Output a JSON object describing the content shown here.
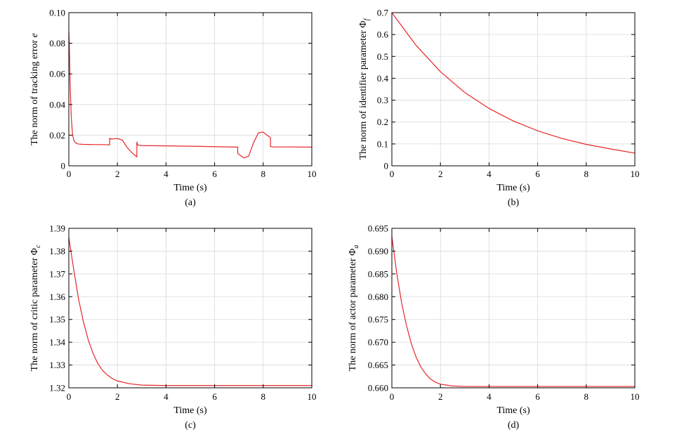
{
  "chart_data": [
    {
      "type": "line",
      "panel": "(a)",
      "xlabel": "Time (s)",
      "ylabel": "The norm of tracking error ",
      "ylabel_var": "e",
      "xlim": [
        0,
        10
      ],
      "ylim": [
        0,
        0.1
      ],
      "xticks": [
        0,
        2,
        4,
        6,
        8,
        10
      ],
      "yticks": [
        0,
        0.02,
        0.04,
        0.06,
        0.08,
        0.1
      ],
      "ytick_labels": [
        "0",
        "0.02",
        "0.04",
        "0.06",
        "0.08",
        "0.10"
      ],
      "grid": true,
      "series": [
        {
          "color": "#e8262a",
          "x": [
            0,
            0.02,
            0.05,
            0.1,
            0.15,
            0.2,
            0.25,
            0.3,
            0.4,
            0.6,
            1.0,
            1.5,
            1.68,
            1.68,
            1.72,
            2.0,
            2.2,
            2.4,
            2.6,
            2.8,
            2.8,
            2.84,
            3.0,
            4.0,
            5.0,
            6.0,
            6.95,
            6.95,
            7.0,
            7.2,
            7.4,
            7.6,
            7.8,
            8.0,
            8.2,
            8.3,
            8.3,
            8.4,
            9.0,
            10.0
          ],
          "y": [
            0.088,
            0.08,
            0.055,
            0.032,
            0.021,
            0.017,
            0.0155,
            0.0148,
            0.0142,
            0.014,
            0.0139,
            0.0138,
            0.0137,
            0.018,
            0.0175,
            0.0178,
            0.0168,
            0.012,
            0.0085,
            0.0058,
            0.0155,
            0.0135,
            0.0132,
            0.013,
            0.0128,
            0.0125,
            0.0122,
            0.0082,
            0.0075,
            0.0052,
            0.0062,
            0.015,
            0.0215,
            0.022,
            0.0195,
            0.0185,
            0.0125,
            0.0123,
            0.0123,
            0.0122
          ]
        }
      ]
    },
    {
      "type": "line",
      "panel": "(b)",
      "xlabel": "Time (s)",
      "ylabel": "The norm of identifier parameter Φ",
      "ylabel_sub": "f",
      "xlim": [
        0,
        10
      ],
      "ylim": [
        0,
        0.7
      ],
      "xticks": [
        0,
        2,
        4,
        6,
        8,
        10
      ],
      "yticks": [
        0,
        0.1,
        0.2,
        0.3,
        0.4,
        0.5,
        0.6,
        0.7
      ],
      "ytick_labels": [
        "0",
        "0.1",
        "0.2",
        "0.3",
        "0.4",
        "0.5",
        "0.6",
        "0.7"
      ],
      "grid": true,
      "series": [
        {
          "color": "#e8262a",
          "x": [
            0,
            1,
            2,
            3,
            4,
            5,
            6,
            7,
            8,
            9,
            10
          ],
          "y": [
            0.7,
            0.55,
            0.43,
            0.335,
            0.262,
            0.205,
            0.16,
            0.125,
            0.098,
            0.077,
            0.058
          ]
        }
      ]
    },
    {
      "type": "line",
      "panel": "(c)",
      "xlabel": "Time (s)",
      "ylabel": "The norm of critic parameter Φ",
      "ylabel_sub": "c",
      "xlim": [
        0,
        10
      ],
      "ylim": [
        1.32,
        1.39
      ],
      "xticks": [
        0,
        2,
        4,
        6,
        8,
        10
      ],
      "yticks": [
        1.32,
        1.33,
        1.34,
        1.35,
        1.36,
        1.37,
        1.38,
        1.39
      ],
      "ytick_labels": [
        "1.32",
        "1.33",
        "1.34",
        "1.35",
        "1.36",
        "1.37",
        "1.38",
        "1.39"
      ],
      "grid": true,
      "series": [
        {
          "color": "#e8262a",
          "x": [
            0,
            0.2,
            0.4,
            0.6,
            0.8,
            1.0,
            1.2,
            1.4,
            1.6,
            1.8,
            2.0,
            2.5,
            3.0,
            4.0,
            5.0,
            6.0,
            8.0,
            10.0
          ],
          "y": [
            1.386,
            1.372,
            1.359,
            1.349,
            1.341,
            1.335,
            1.3305,
            1.3275,
            1.3255,
            1.324,
            1.323,
            1.3218,
            1.3212,
            1.321,
            1.321,
            1.321,
            1.321,
            1.321
          ]
        }
      ]
    },
    {
      "type": "line",
      "panel": "(d)",
      "xlabel": "Time (s)",
      "ylabel": "The norm of actor parameter Φ",
      "ylabel_sub": "a",
      "xlim": [
        0,
        10
      ],
      "ylim": [
        0.66,
        0.695
      ],
      "xticks": [
        0,
        2,
        4,
        6,
        8,
        10
      ],
      "yticks": [
        0.66,
        0.665,
        0.67,
        0.675,
        0.68,
        0.685,
        0.69,
        0.695
      ],
      "ytick_labels": [
        "0.660",
        "0.665",
        "0.670",
        "0.675",
        "0.680",
        "0.685",
        "0.690",
        "0.695"
      ],
      "grid": true,
      "series": [
        {
          "color": "#e8262a",
          "x": [
            0,
            0.2,
            0.4,
            0.6,
            0.8,
            1.0,
            1.2,
            1.4,
            1.6,
            1.8,
            2.0,
            2.5,
            3.0,
            4.0,
            5.0,
            6.0,
            8.0,
            10.0
          ],
          "y": [
            0.6932,
            0.6852,
            0.6787,
            0.6737,
            0.6697,
            0.6667,
            0.6645,
            0.663,
            0.6619,
            0.6612,
            0.6608,
            0.6604,
            0.6603,
            0.6603,
            0.6603,
            0.6603,
            0.6603,
            0.6603
          ]
        }
      ]
    }
  ]
}
